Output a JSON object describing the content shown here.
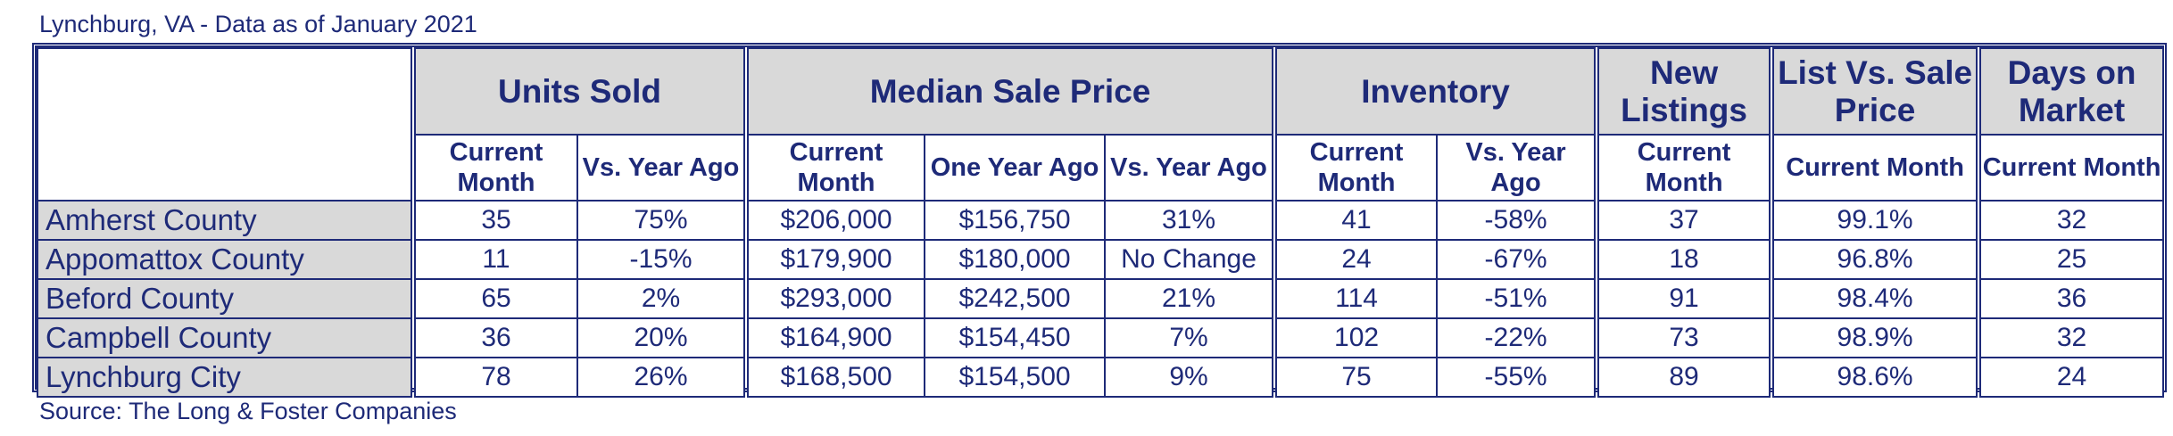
{
  "caption": "Lynchburg, VA - Data as of January 2021",
  "source": "Source: The Long & Foster Companies",
  "groups": {
    "units_sold": "Units Sold",
    "median_sale_price": "Median Sale Price",
    "inventory": "Inventory",
    "new_listings": "New Listings",
    "list_vs_sale": "List Vs. Sale Price",
    "days_on_market": "Days on Market"
  },
  "subheaders": {
    "us_current": "Current Month",
    "us_vs_year": "Vs. Year Ago",
    "msp_current": "Current Month",
    "msp_one_year": "One Year Ago",
    "msp_vs_year": "Vs. Year Ago",
    "inv_current": "Current Month",
    "inv_vs_year": "Vs. Year Ago",
    "nl_current": "Current Month",
    "lvs_current": "Current Month",
    "dom_current": "Current Month"
  },
  "rows": [
    {
      "area": "Amherst County",
      "units_current": "35",
      "units_vs_year": "75%",
      "msp_current": "$206,000",
      "msp_one_year": "$156,750",
      "msp_vs_year": "31%",
      "inv_current": "41",
      "inv_vs_year": "-58%",
      "new_listings": "37",
      "list_vs_sale": "99.1%",
      "days_on_market": "32"
    },
    {
      "area": "Appomattox County",
      "units_current": "11",
      "units_vs_year": "-15%",
      "msp_current": "$179,900",
      "msp_one_year": "$180,000",
      "msp_vs_year": "No Change",
      "inv_current": "24",
      "inv_vs_year": "-67%",
      "new_listings": "18",
      "list_vs_sale": "96.8%",
      "days_on_market": "25"
    },
    {
      "area": "Beford County",
      "units_current": "65",
      "units_vs_year": "2%",
      "msp_current": "$293,000",
      "msp_one_year": "$242,500",
      "msp_vs_year": "21%",
      "inv_current": "114",
      "inv_vs_year": "-51%",
      "new_listings": "91",
      "list_vs_sale": "98.4%",
      "days_on_market": "36"
    },
    {
      "area": "Campbell County",
      "units_current": "36",
      "units_vs_year": "20%",
      "msp_current": "$164,900",
      "msp_one_year": "$154,450",
      "msp_vs_year": "7%",
      "inv_current": "102",
      "inv_vs_year": "-22%",
      "new_listings": "73",
      "list_vs_sale": "98.9%",
      "days_on_market": "32"
    },
    {
      "area": "Lynchburg City",
      "units_current": "78",
      "units_vs_year": "26%",
      "msp_current": "$168,500",
      "msp_one_year": "$154,500",
      "msp_vs_year": "9%",
      "inv_current": "75",
      "inv_vs_year": "-55%",
      "new_listings": "89",
      "list_vs_sale": "98.6%",
      "days_on_market": "24"
    }
  ]
}
